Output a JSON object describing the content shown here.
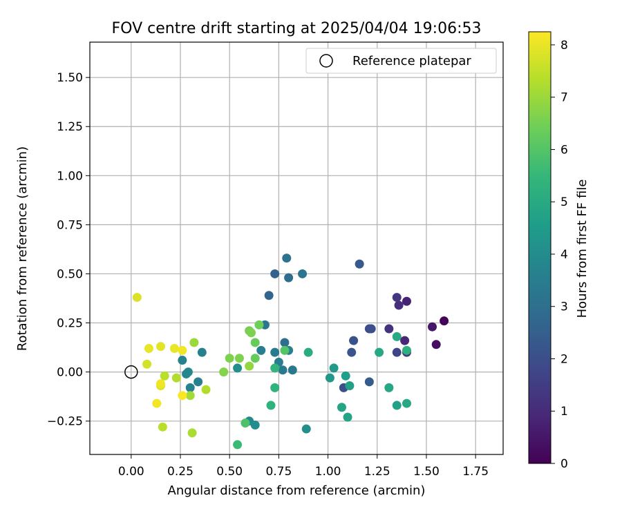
{
  "chart_data": {
    "type": "scatter",
    "title": "FOV centre drift starting at 2025/04/04 19:06:53",
    "xlabel": "Angular distance from reference (arcmin)",
    "ylabel": "Rotation from reference (arcmin)",
    "xlim": [
      -0.21,
      1.89
    ],
    "ylim": [
      -0.42,
      1.68
    ],
    "xticks": [
      "0.00",
      "0.25",
      "0.50",
      "0.75",
      "1.00",
      "1.25",
      "1.50",
      "1.75"
    ],
    "xtick_values": [
      0,
      0.25,
      0.5,
      0.75,
      1.0,
      1.25,
      1.5,
      1.75
    ],
    "yticks": [
      "−0.25",
      "0.00",
      "0.25",
      "0.50",
      "0.75",
      "1.00",
      "1.25",
      "1.50"
    ],
    "ytick_values": [
      -0.25,
      0,
      0.25,
      0.5,
      0.75,
      1.0,
      1.25,
      1.5
    ],
    "grid": true,
    "legend": {
      "placement": "top-right",
      "label": "Reference platepar"
    },
    "reference_point": {
      "x": 0,
      "y": 0
    },
    "colormap": "viridis",
    "colorbar": {
      "label": "Hours from first FF file",
      "min": 0,
      "max": 8.25,
      "ticks": [
        "0",
        "1",
        "2",
        "3",
        "4",
        "5",
        "6",
        "7",
        "8"
      ],
      "tick_values": [
        0,
        1,
        2,
        3,
        4,
        5,
        6,
        7,
        8
      ],
      "stops": [
        "#440154",
        "#482878",
        "#3e4989",
        "#31688e",
        "#26828e",
        "#1f9e89",
        "#35b779",
        "#6ece58",
        "#b5de2b",
        "#fde725"
      ]
    },
    "points": [
      {
        "x": 1.59,
        "y": 0.26,
        "c": 0.1
      },
      {
        "x": 1.55,
        "y": 0.14,
        "c": 0.3
      },
      {
        "x": 1.53,
        "y": 0.23,
        "c": 0.5
      },
      {
        "x": 1.4,
        "y": 0.36,
        "c": 0.8
      },
      {
        "x": 1.39,
        "y": 0.16,
        "c": 0.9
      },
      {
        "x": 1.36,
        "y": 0.34,
        "c": 1.1
      },
      {
        "x": 1.35,
        "y": 0.38,
        "c": 1.3
      },
      {
        "x": 1.31,
        "y": 0.22,
        "c": 1.2
      },
      {
        "x": 1.4,
        "y": 0.1,
        "c": 1.5
      },
      {
        "x": 1.35,
        "y": 0.1,
        "c": 1.7
      },
      {
        "x": 1.21,
        "y": 0.22,
        "c": 1.9
      },
      {
        "x": 1.22,
        "y": 0.22,
        "c": 2.0
      },
      {
        "x": 1.13,
        "y": 0.16,
        "c": 2.1
      },
      {
        "x": 1.12,
        "y": 0.1,
        "c": 2.2
      },
      {
        "x": 1.16,
        "y": 0.55,
        "c": 2.3
      },
      {
        "x": 1.08,
        "y": -0.08,
        "c": 2.0
      },
      {
        "x": 1.21,
        "y": -0.05,
        "c": 2.4
      },
      {
        "x": 0.73,
        "y": 0.5,
        "c": 2.6
      },
      {
        "x": 0.7,
        "y": 0.39,
        "c": 2.7
      },
      {
        "x": 0.79,
        "y": 0.58,
        "c": 3.1
      },
      {
        "x": 0.8,
        "y": 0.48,
        "c": 2.9
      },
      {
        "x": 0.87,
        "y": 0.5,
        "c": 3.2
      },
      {
        "x": 0.68,
        "y": 0.24,
        "c": 3.3
      },
      {
        "x": 0.78,
        "y": 0.15,
        "c": 3.0
      },
      {
        "x": 0.73,
        "y": 0.1,
        "c": 3.4
      },
      {
        "x": 0.66,
        "y": 0.11,
        "c": 3.5
      },
      {
        "x": 0.75,
        "y": 0.05,
        "c": 3.5
      },
      {
        "x": 0.77,
        "y": 0.01,
        "c": 3.4
      },
      {
        "x": 0.82,
        "y": 0.01,
        "c": 3.3
      },
      {
        "x": 0.8,
        "y": 0.11,
        "c": 3.6
      },
      {
        "x": 0.36,
        "y": 0.1,
        "c": 3.6
      },
      {
        "x": 0.26,
        "y": 0.06,
        "c": 3.7
      },
      {
        "x": 0.34,
        "y": -0.05,
        "c": 3.6
      },
      {
        "x": 0.29,
        "y": 0.0,
        "c": 3.9
      },
      {
        "x": 0.28,
        "y": -0.01,
        "c": 3.8
      },
      {
        "x": 0.3,
        "y": -0.08,
        "c": 3.7
      },
      {
        "x": 0.54,
        "y": 0.02,
        "c": 4.1
      },
      {
        "x": 0.6,
        "y": -0.25,
        "c": 3.9
      },
      {
        "x": 0.63,
        "y": -0.27,
        "c": 4.0
      },
      {
        "x": 0.89,
        "y": -0.29,
        "c": 4.1
      },
      {
        "x": 1.01,
        "y": -0.03,
        "c": 4.4
      },
      {
        "x": 1.03,
        "y": 0.02,
        "c": 4.5
      },
      {
        "x": 1.09,
        "y": -0.02,
        "c": 4.6
      },
      {
        "x": 1.11,
        "y": -0.07,
        "c": 4.7
      },
      {
        "x": 1.07,
        "y": -0.18,
        "c": 4.8
      },
      {
        "x": 1.1,
        "y": -0.23,
        "c": 4.8
      },
      {
        "x": 1.26,
        "y": 0.1,
        "c": 4.9
      },
      {
        "x": 1.31,
        "y": -0.08,
        "c": 4.9
      },
      {
        "x": 1.35,
        "y": -0.17,
        "c": 4.7
      },
      {
        "x": 1.4,
        "y": -0.16,
        "c": 4.9
      },
      {
        "x": 1.35,
        "y": 0.18,
        "c": 5.0
      },
      {
        "x": 1.4,
        "y": 0.11,
        "c": 5.2
      },
      {
        "x": 0.9,
        "y": 0.1,
        "c": 5.1
      },
      {
        "x": 0.73,
        "y": 0.02,
        "c": 5.4
      },
      {
        "x": 0.73,
        "y": -0.08,
        "c": 5.3
      },
      {
        "x": 0.71,
        "y": -0.17,
        "c": 5.3
      },
      {
        "x": 0.54,
        "y": -0.37,
        "c": 5.6
      },
      {
        "x": 0.58,
        "y": -0.26,
        "c": 5.9
      },
      {
        "x": 0.78,
        "y": 0.11,
        "c": 6.0
      },
      {
        "x": 0.63,
        "y": 0.07,
        "c": 6.3
      },
      {
        "x": 0.63,
        "y": 0.15,
        "c": 6.3
      },
      {
        "x": 0.65,
        "y": 0.24,
        "c": 6.4
      },
      {
        "x": 0.6,
        "y": 0.21,
        "c": 6.5
      },
      {
        "x": 0.61,
        "y": 0.2,
        "c": 6.6
      },
      {
        "x": 0.55,
        "y": 0.07,
        "c": 6.6
      },
      {
        "x": 0.5,
        "y": 0.07,
        "c": 6.6
      },
      {
        "x": 0.47,
        "y": 0.0,
        "c": 6.7
      },
      {
        "x": 0.6,
        "y": 0.03,
        "c": 6.9
      },
      {
        "x": 0.32,
        "y": 0.15,
        "c": 7.0
      },
      {
        "x": 0.38,
        "y": -0.09,
        "c": 7.3
      },
      {
        "x": 0.3,
        "y": -0.12,
        "c": 7.1
      },
      {
        "x": 0.31,
        "y": -0.31,
        "c": 7.2
      },
      {
        "x": 0.23,
        "y": -0.03,
        "c": 7.3
      },
      {
        "x": 0.17,
        "y": -0.02,
        "c": 7.4
      },
      {
        "x": 0.16,
        "y": -0.28,
        "c": 7.4
      },
      {
        "x": 0.03,
        "y": 0.38,
        "c": 7.8
      },
      {
        "x": 0.08,
        "y": 0.04,
        "c": 7.7
      },
      {
        "x": 0.15,
        "y": 0.13,
        "c": 7.9
      },
      {
        "x": 0.09,
        "y": 0.12,
        "c": 8.0
      },
      {
        "x": 0.22,
        "y": 0.12,
        "c": 8.0
      },
      {
        "x": 0.26,
        "y": 0.11,
        "c": 8.1
      },
      {
        "x": 0.15,
        "y": -0.07,
        "c": 7.8
      },
      {
        "x": 0.15,
        "y": -0.06,
        "c": 8.1
      },
      {
        "x": 0.13,
        "y": -0.16,
        "c": 8.1
      },
      {
        "x": 0.26,
        "y": -0.12,
        "c": 8.2
      }
    ]
  }
}
